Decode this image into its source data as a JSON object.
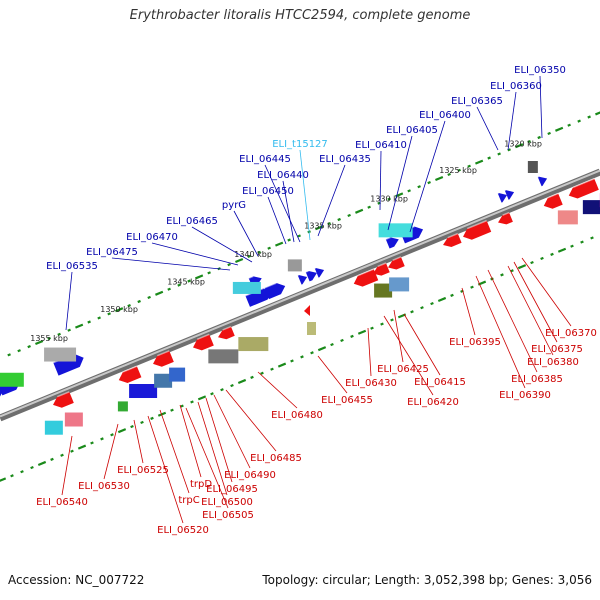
{
  "title": "Erythrobacter litoralis HTCC2594, complete genome",
  "accession": "Accession: NC_007722",
  "summary": "Topology: circular; Length: 3,052,398 bp; Genes: 3,056",
  "colors": {
    "forward_label": "#0000aa",
    "reverse_label": "#cc0000",
    "trna_label": "#33bbee",
    "backbone": "#8a8a8a",
    "tick": "#1a8a1a"
  },
  "kbp_ticks": [
    "1320 kbp",
    "1325 kbp",
    "1330 kbp",
    "1335 kbp",
    "1340 kbp",
    "1345 kbp",
    "1350 kbp",
    "1355 kbp"
  ],
  "forward_genes": [
    "ELI_06350",
    "ELI_06360",
    "ELI_06365",
    "ELI_06400",
    "ELI_06405",
    "ELI_06410",
    "ELI_t15127",
    "ELI_06435",
    "ELI_06445",
    "ELI_06440",
    "ELI_06450",
    "pyrG",
    "ELI_06465",
    "ELI_06470",
    "ELI_06475",
    "ELI_06535"
  ],
  "reverse_genes": [
    "ELI_06370",
    "ELI_06375",
    "ELI_06380",
    "ELI_06395",
    "ELI_06385",
    "ELI_06390",
    "ELI_06415",
    "ELI_06425",
    "ELI_06430",
    "ELI_06420",
    "ELI_06455",
    "ELI_06480",
    "ELI_06485",
    "ELI_06490",
    "ELI_06495",
    "ELI_06500",
    "trpD",
    "ELI_06505",
    "trpC",
    "ELI_06520",
    "ELI_06525",
    "ELI_06530",
    "ELI_06540"
  ]
}
